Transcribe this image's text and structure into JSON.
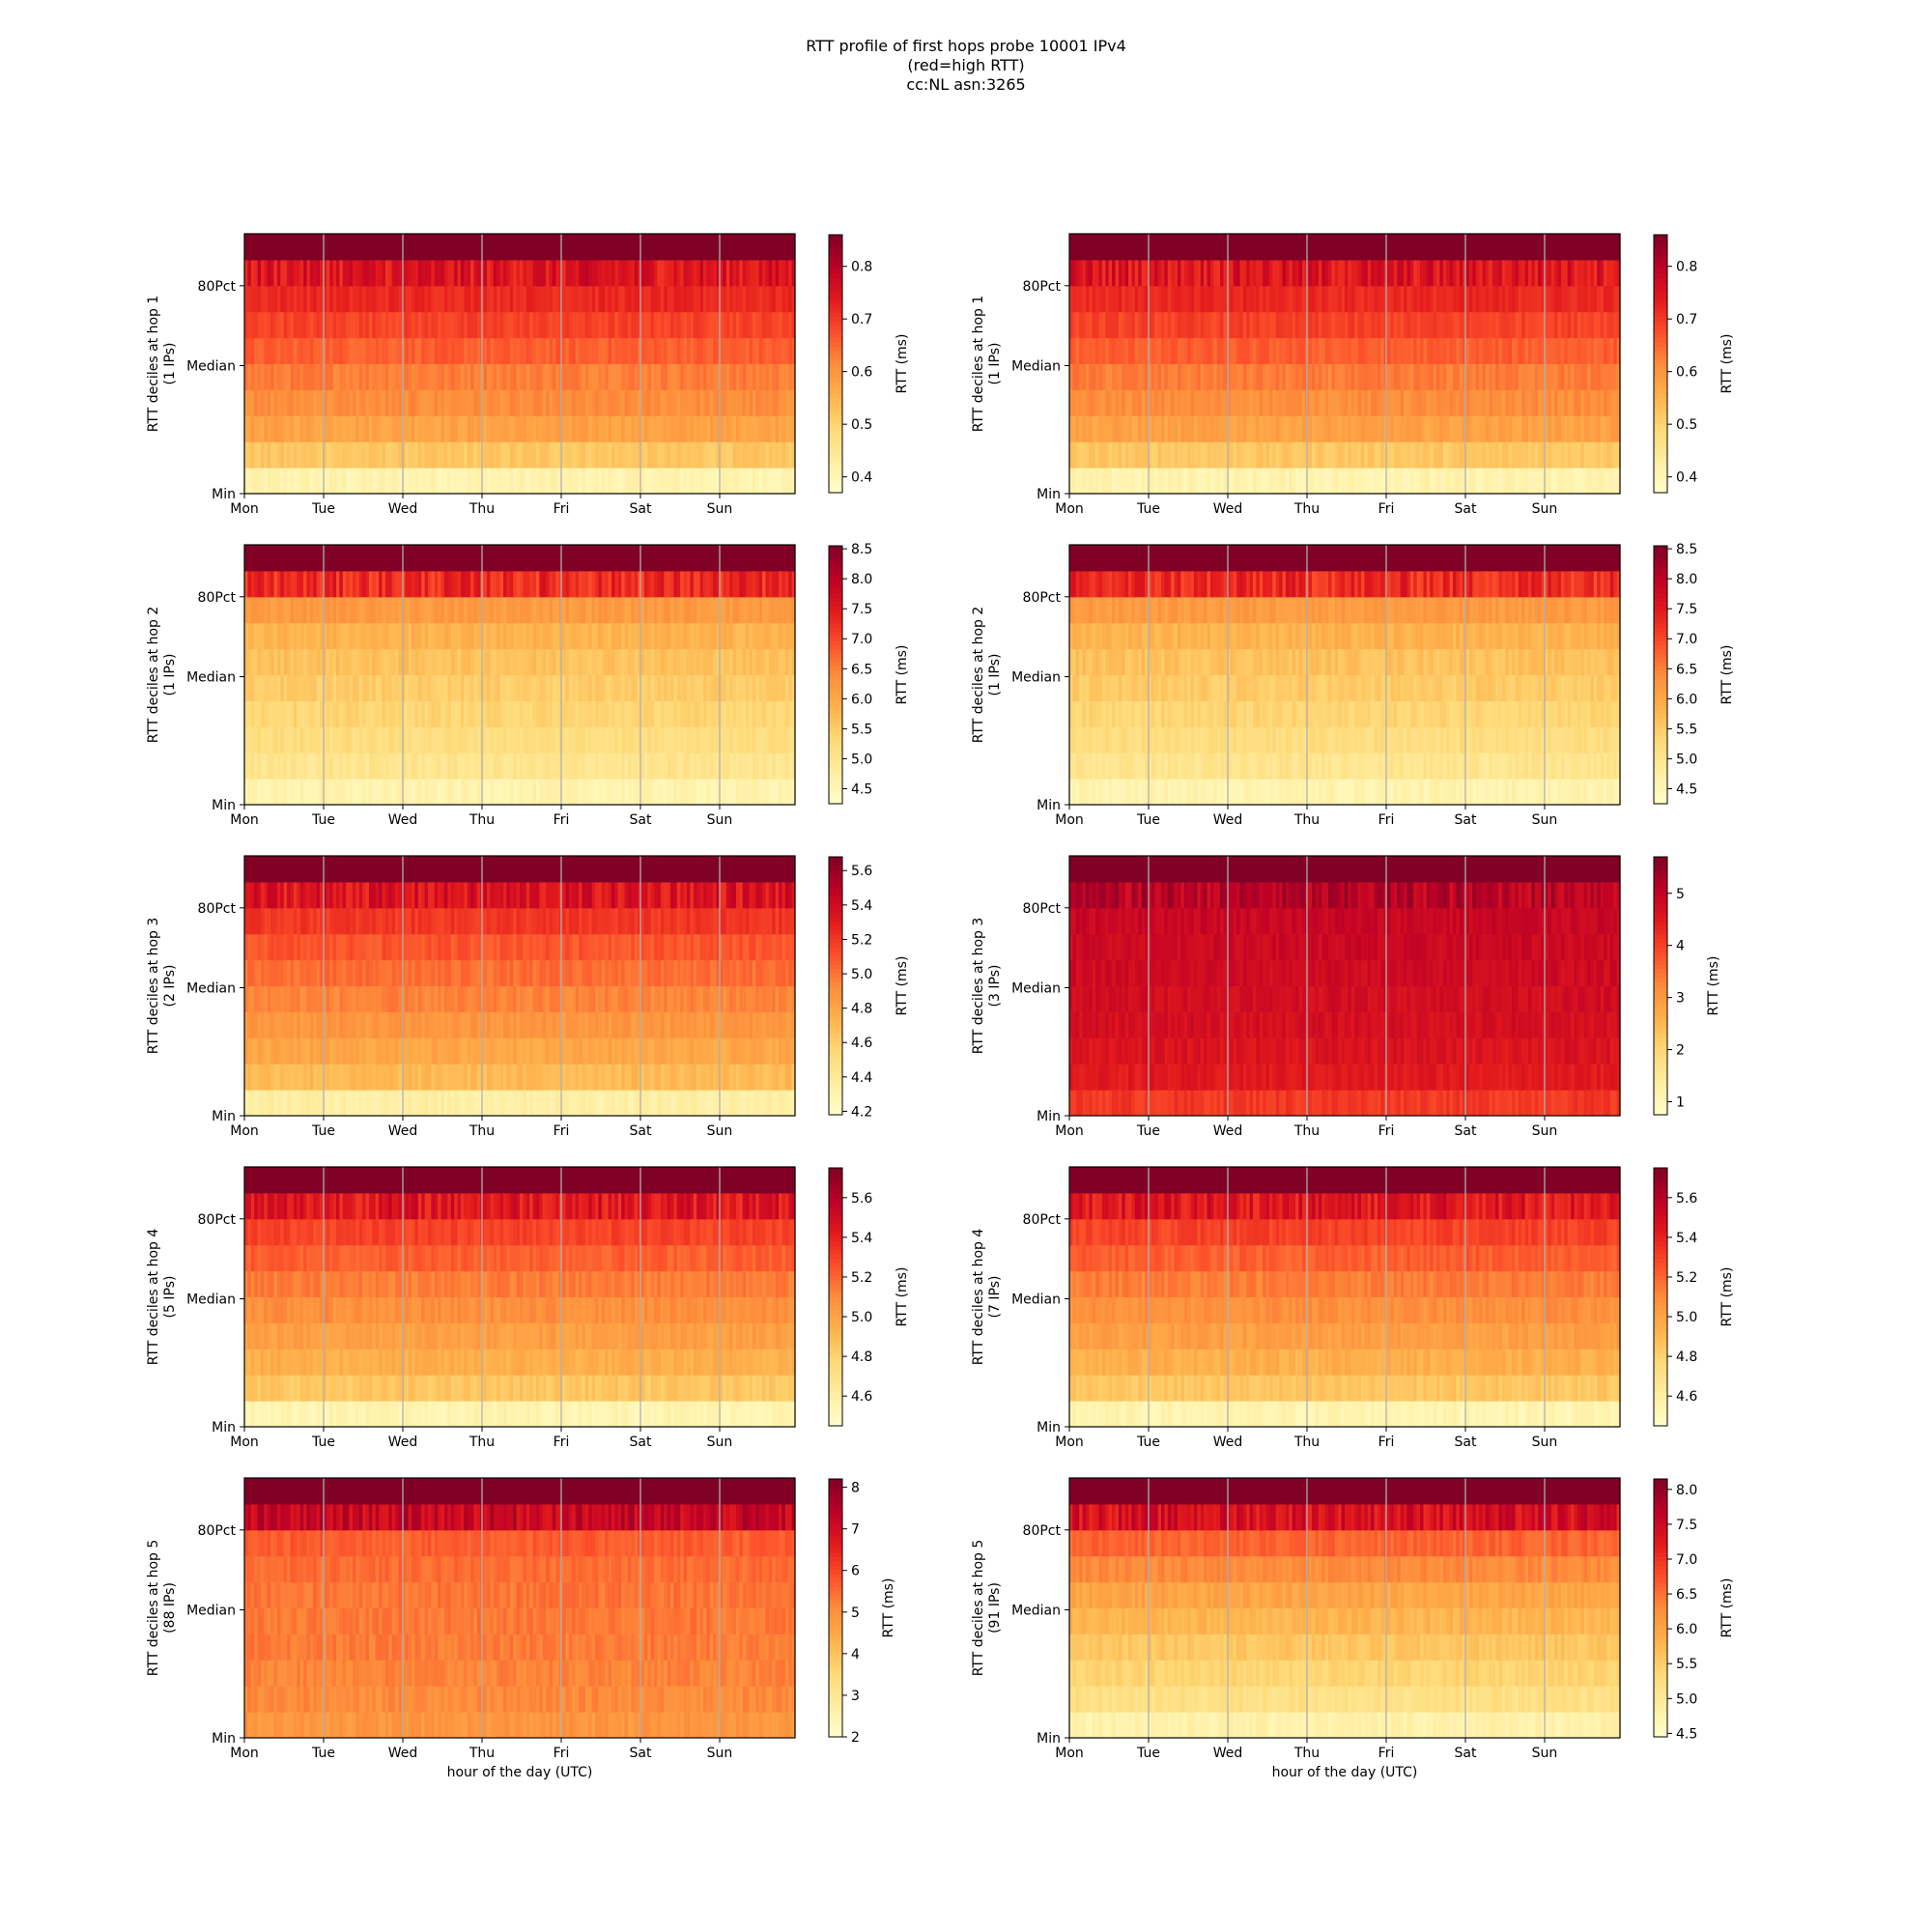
{
  "title_lines": [
    "RTT profile of first hops probe 10001 IPv4",
    "(red=high RTT)",
    "cc:NL asn:3265"
  ],
  "colormap": [
    "#ffffcc",
    "#ffeda0",
    "#fed976",
    "#feb24c",
    "#fd8d3c",
    "#fc4e2a",
    "#e31a1c",
    "#bd0026",
    "#800026"
  ],
  "grid_color": "#b0b0b0",
  "chart_data": [
    {
      "type": "heatmap",
      "hop": 1,
      "ylabel": "RTT deciles at hop 1",
      "ips": "(1 IPs)",
      "xlabel": "",
      "x_ticks": [
        "Mon",
        "Tue",
        "Wed",
        "Thu",
        "Fri",
        "Sat",
        "Sun"
      ],
      "y_ticks": [
        "Min",
        "Median",
        "80Pct"
      ],
      "cbar_label": "RTT (ms)",
      "cbar_ticks": [
        "0.4",
        "0.5",
        "0.6",
        "0.7",
        "0.8"
      ],
      "cbar_range": [
        0.37,
        0.86
      ],
      "decile_values": [
        0.41,
        0.52,
        0.58,
        0.61,
        0.63,
        0.66,
        0.69,
        0.72,
        0.75,
        0.86
      ]
    },
    {
      "type": "heatmap",
      "hop": 1,
      "ylabel": "RTT deciles at hop 1",
      "ips": "(1 IPs)",
      "xlabel": "",
      "x_ticks": [
        "Mon",
        "Tue",
        "Wed",
        "Thu",
        "Fri",
        "Sat",
        "Sun"
      ],
      "y_ticks": [
        "Min",
        "Median",
        "80Pct"
      ],
      "cbar_label": "RTT (ms)",
      "cbar_ticks": [
        "0.4",
        "0.5",
        "0.6",
        "0.7",
        "0.8"
      ],
      "cbar_range": [
        0.37,
        0.86
      ],
      "decile_values": [
        0.41,
        0.52,
        0.58,
        0.61,
        0.63,
        0.66,
        0.69,
        0.72,
        0.75,
        0.86
      ]
    },
    {
      "type": "heatmap",
      "hop": 2,
      "ylabel": "RTT deciles at hop 2",
      "ips": "(1 IPs)",
      "xlabel": "",
      "x_ticks": [
        "Mon",
        "Tue",
        "Wed",
        "Thu",
        "Fri",
        "Sat",
        "Sun"
      ],
      "y_ticks": [
        "Min",
        "Median",
        "80Pct"
      ],
      "cbar_label": "RTT (ms)",
      "cbar_ticks": [
        "4.5",
        "5.0",
        "5.5",
        "6.0",
        "6.5",
        "7.0",
        "7.5",
        "8.0",
        "8.5"
      ],
      "cbar_range": [
        4.25,
        8.55
      ],
      "decile_values": [
        4.6,
        5.0,
        5.2,
        5.35,
        5.5,
        5.65,
        5.85,
        6.2,
        7.3,
        8.55
      ]
    },
    {
      "type": "heatmap",
      "hop": 2,
      "ylabel": "RTT deciles at hop 2",
      "ips": "(1 IPs)",
      "xlabel": "",
      "x_ticks": [
        "Mon",
        "Tue",
        "Wed",
        "Thu",
        "Fri",
        "Sat",
        "Sun"
      ],
      "y_ticks": [
        "Min",
        "Median",
        "80Pct"
      ],
      "cbar_label": "RTT (ms)",
      "cbar_ticks": [
        "4.5",
        "5.0",
        "5.5",
        "6.0",
        "6.5",
        "7.0",
        "7.5",
        "8.0",
        "8.5"
      ],
      "cbar_range": [
        4.25,
        8.55
      ],
      "decile_values": [
        4.6,
        5.0,
        5.2,
        5.35,
        5.5,
        5.65,
        5.85,
        6.2,
        7.3,
        8.55
      ]
    },
    {
      "type": "heatmap",
      "hop": 3,
      "ylabel": "RTT deciles at hop 3",
      "ips": "(2 IPs)",
      "xlabel": "",
      "x_ticks": [
        "Mon",
        "Tue",
        "Wed",
        "Thu",
        "Fri",
        "Sat",
        "Sun"
      ],
      "y_ticks": [
        "Min",
        "Median",
        "80Pct"
      ],
      "cbar_label": "RTT (ms)",
      "cbar_ticks": [
        "4.2",
        "4.4",
        "4.6",
        "4.8",
        "5.0",
        "5.2",
        "5.4",
        "5.6"
      ],
      "cbar_range": [
        4.18,
        5.68
      ],
      "decile_values": [
        4.35,
        4.7,
        4.8,
        4.88,
        4.95,
        5.02,
        5.1,
        5.2,
        5.35,
        5.68
      ]
    },
    {
      "type": "heatmap",
      "hop": 3,
      "ylabel": "RTT deciles at hop 3",
      "ips": "(3 IPs)",
      "xlabel": "",
      "x_ticks": [
        "Mon",
        "Tue",
        "Wed",
        "Thu",
        "Fri",
        "Sat",
        "Sun"
      ],
      "y_ticks": [
        "Min",
        "Median",
        "80Pct"
      ],
      "cbar_label": "RTT (ms)",
      "cbar_ticks": [
        "1",
        "2",
        "3",
        "4",
        "5"
      ],
      "cbar_range": [
        0.75,
        5.7
      ],
      "decile_values": [
        4.1,
        4.5,
        4.6,
        4.7,
        4.75,
        4.8,
        4.85,
        4.9,
        5.1,
        5.7
      ]
    },
    {
      "type": "heatmap",
      "hop": 4,
      "ylabel": "RTT deciles at hop 4",
      "ips": "(5 IPs)",
      "xlabel": "",
      "x_ticks": [
        "Mon",
        "Tue",
        "Wed",
        "Thu",
        "Fri",
        "Sat",
        "Sun"
      ],
      "y_ticks": [
        "Min",
        "Median",
        "80Pct"
      ],
      "cbar_label": "RTT (ms)",
      "cbar_ticks": [
        "4.6",
        "4.8",
        "5.0",
        "5.2",
        "5.4",
        "5.6"
      ],
      "cbar_range": [
        4.45,
        5.75
      ],
      "decile_values": [
        4.55,
        4.85,
        4.95,
        5.02,
        5.08,
        5.14,
        5.22,
        5.3,
        5.45,
        5.75
      ]
    },
    {
      "type": "heatmap",
      "hop": 4,
      "ylabel": "RTT deciles at hop 4",
      "ips": "(7 IPs)",
      "xlabel": "",
      "x_ticks": [
        "Mon",
        "Tue",
        "Wed",
        "Thu",
        "Fri",
        "Sat",
        "Sun"
      ],
      "y_ticks": [
        "Min",
        "Median",
        "80Pct"
      ],
      "cbar_label": "RTT (ms)",
      "cbar_ticks": [
        "4.6",
        "4.8",
        "5.0",
        "5.2",
        "5.4",
        "5.6"
      ],
      "cbar_range": [
        4.45,
        5.75
      ],
      "decile_values": [
        4.55,
        4.85,
        4.95,
        5.02,
        5.08,
        5.14,
        5.22,
        5.3,
        5.45,
        5.75
      ]
    },
    {
      "type": "heatmap",
      "hop": 5,
      "ylabel": "RTT deciles at hop 5",
      "ips": "(88 IPs)",
      "xlabel": "hour of the day (UTC)",
      "x_ticks": [
        "Mon",
        "Tue",
        "Wed",
        "Thu",
        "Fri",
        "Sat",
        "Sun"
      ],
      "y_ticks": [
        "Min",
        "Median",
        "80Pct"
      ],
      "cbar_label": "RTT (ms)",
      "cbar_ticks": [
        "2",
        "3",
        "4",
        "5",
        "6",
        "7",
        "8"
      ],
      "cbar_range": [
        2.0,
        8.2
      ],
      "decile_values": [
        4.9,
        5.1,
        5.2,
        5.3,
        5.35,
        5.4,
        5.5,
        5.7,
        7.2,
        8.2
      ]
    },
    {
      "type": "heatmap",
      "hop": 5,
      "ylabel": "RTT deciles at hop 5",
      "ips": "(91 IPs)",
      "xlabel": "hour of the day (UTC)",
      "x_ticks": [
        "Mon",
        "Tue",
        "Wed",
        "Thu",
        "Fri",
        "Sat",
        "Sun"
      ],
      "y_ticks": [
        "Min",
        "Median",
        "80Pct"
      ],
      "cbar_label": "RTT (ms)",
      "cbar_ticks": [
        "4.5",
        "5.0",
        "5.5",
        "6.0",
        "6.5",
        "7.0",
        "7.5",
        "8.0"
      ],
      "cbar_range": [
        4.45,
        8.15
      ],
      "decile_values": [
        4.8,
        5.2,
        5.4,
        5.6,
        5.8,
        6.0,
        6.3,
        6.6,
        7.4,
        8.15
      ]
    }
  ]
}
